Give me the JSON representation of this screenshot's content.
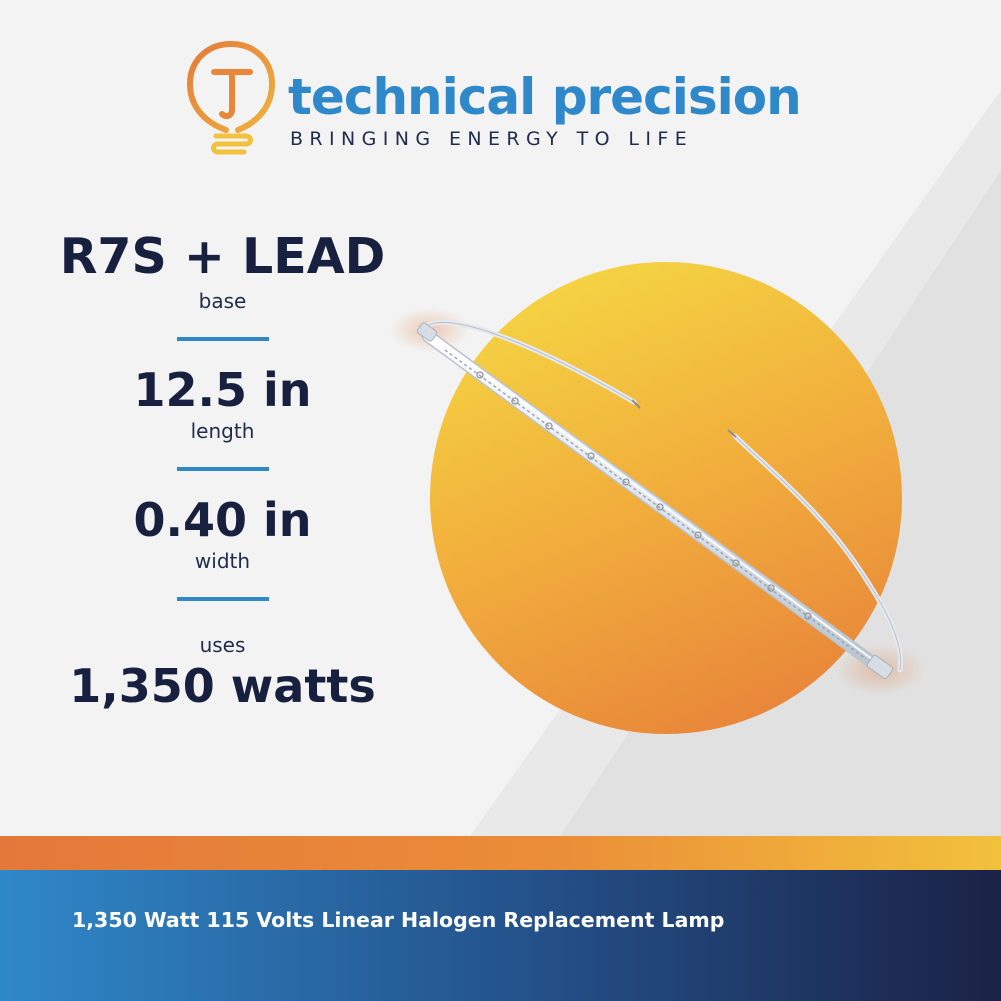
{
  "brand": {
    "name": "technical precision",
    "tagline": "BRINGING ENERGY TO LIFE",
    "color_primary": "#2f88c9",
    "color_accent": "#e58a3a",
    "logo_icon": "lightbulb-t-logo-icon"
  },
  "specs": [
    {
      "value": "R7S + LEAD",
      "label": "base"
    },
    {
      "value": "12.5 in",
      "label": "length"
    },
    {
      "value": "0.40 in",
      "label": "width"
    },
    {
      "value": "1,350 watts",
      "label": "uses"
    }
  ],
  "product_image": "linear-halogen-lamp-with-leads",
  "footer": {
    "title": "1,350 Watt 115 Volts Linear Halogen Replacement Lamp"
  },
  "colors": {
    "text_dark": "#17203f",
    "circle_top": "#f5cf41",
    "circle_bottom": "#e9893a"
  }
}
